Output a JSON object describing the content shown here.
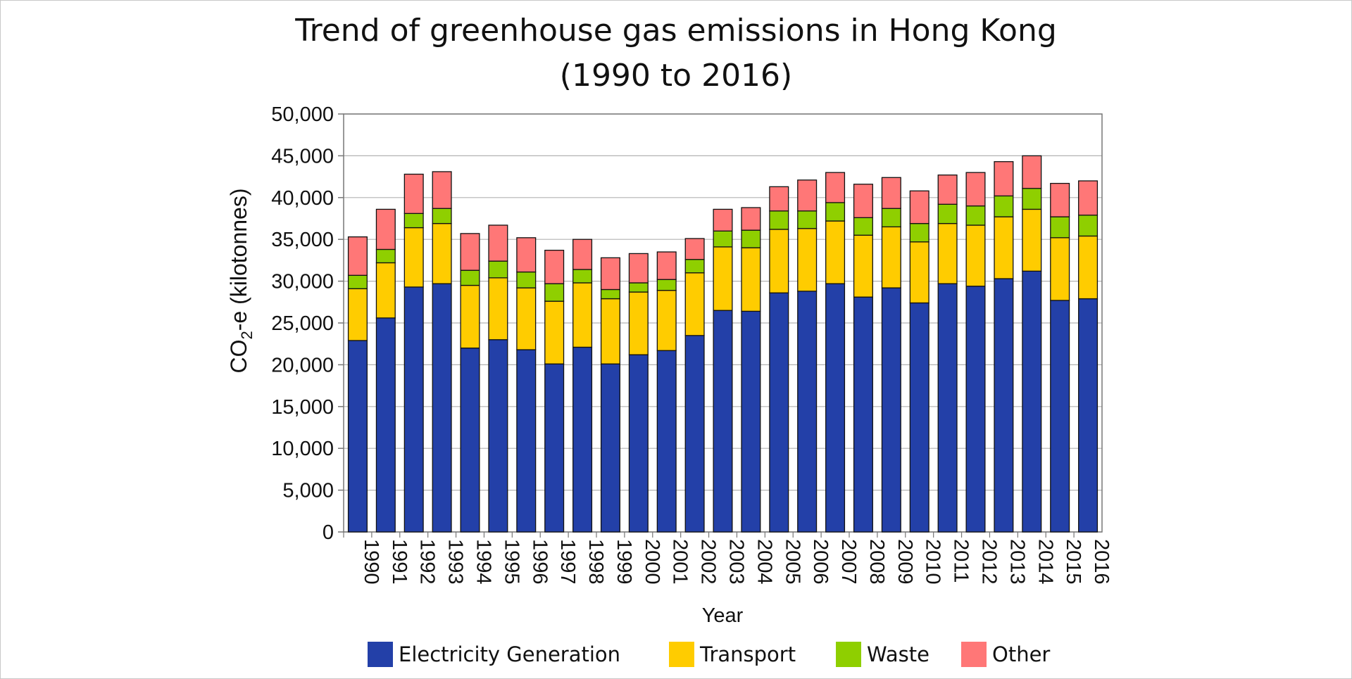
{
  "chart_data": {
    "type": "bar",
    "stacked": true,
    "title_line1": "Trend of greenhouse gas emissions in Hong Kong",
    "title_line2": "(1990 to 2016)",
    "xlabel": "Year",
    "ylabel_main": "CO",
    "ylabel_sub": "2",
    "ylabel_rest": "-e (kilotonnes)",
    "ylim": [
      0,
      50000
    ],
    "yticks": [
      0,
      5000,
      10000,
      15000,
      20000,
      25000,
      30000,
      35000,
      40000,
      45000,
      50000
    ],
    "ytick_labels": [
      "0",
      "5,000",
      "10,000",
      "15,000",
      "20,000",
      "25,000",
      "30,000",
      "35,000",
      "40,000",
      "45,000",
      "50,000"
    ],
    "grid": true,
    "legend_position": "bottom",
    "categories": [
      "1990",
      "1991",
      "1992",
      "1993",
      "1994",
      "1995",
      "1996",
      "1997",
      "1998",
      "1999",
      "2000",
      "2001",
      "2002",
      "2003",
      "2004",
      "2005",
      "2006",
      "2007",
      "2008",
      "2009",
      "2010",
      "2011",
      "2012",
      "2013",
      "2014",
      "2015",
      "2016"
    ],
    "series": [
      {
        "name": "Electricity Generation",
        "color": "#2340a8",
        "values": [
          22900,
          25600,
          29300,
          29700,
          22000,
          23000,
          21800,
          20100,
          22100,
          20100,
          21200,
          21700,
          23500,
          26500,
          26400,
          28600,
          28800,
          29700,
          28100,
          29200,
          27400,
          29700,
          29400,
          30300,
          31200,
          27700,
          27900
        ]
      },
      {
        "name": "Transport",
        "color": "#ffcc00",
        "values": [
          6200,
          6600,
          7100,
          7200,
          7500,
          7400,
          7400,
          7500,
          7700,
          7800,
          7500,
          7200,
          7500,
          7600,
          7600,
          7600,
          7500,
          7500,
          7400,
          7300,
          7300,
          7200,
          7300,
          7400,
          7400,
          7500,
          7500
        ]
      },
      {
        "name": "Waste",
        "color": "#8fcf00",
        "values": [
          1600,
          1600,
          1700,
          1800,
          1800,
          2000,
          1900,
          2100,
          1600,
          1100,
          1100,
          1300,
          1600,
          1900,
          2100,
          2200,
          2100,
          2200,
          2100,
          2200,
          2200,
          2300,
          2300,
          2500,
          2500,
          2500,
          2500
        ]
      },
      {
        "name": "Other",
        "color": "#ff7777",
        "values": [
          4600,
          4800,
          4700,
          4400,
          4400,
          4300,
          4100,
          4000,
          3600,
          3800,
          3500,
          3300,
          2500,
          2600,
          2700,
          2900,
          3700,
          3600,
          4000,
          3700,
          3900,
          3500,
          4000,
          4100,
          3900,
          4000,
          4100
        ]
      }
    ]
  }
}
